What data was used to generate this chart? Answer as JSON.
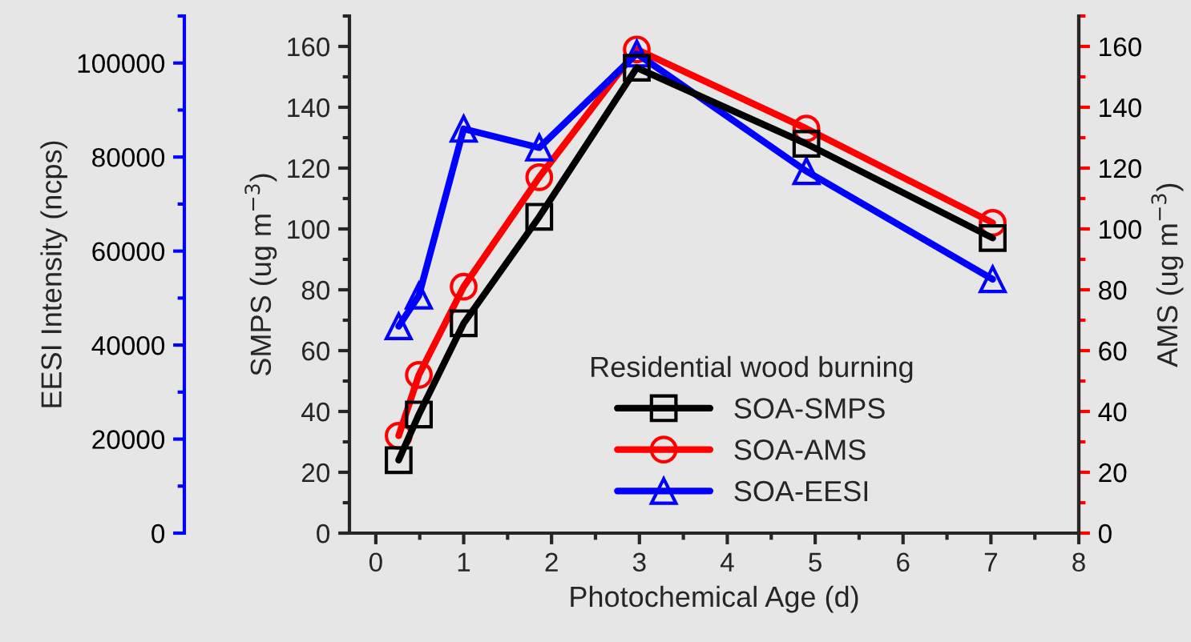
{
  "chart_data": {
    "type": "line",
    "xlabel": "Photochemical Age (d)",
    "ylabel": "SMPS (ug m$^{−3}$)",
    "y2label": "AMS (ug m$^{−3}$)",
    "y3label": "EESI Intensity (ncps)",
    "legend_title": "Residential wood burning",
    "legend": "bottom right",
    "grid": false,
    "line_style": "solid",
    "xlim": [
      -0.3,
      8
    ],
    "xticks": [
      0,
      1,
      2,
      3,
      4,
      5,
      6,
      7,
      8
    ],
    "ylim": [
      0,
      170
    ],
    "yticks": [
      0,
      20,
      40,
      60,
      80,
      100,
      120,
      140,
      160
    ],
    "y2lim": [
      0,
      170
    ],
    "y2ticks": [
      0,
      20,
      40,
      60,
      80,
      100,
      120,
      140,
      160
    ],
    "y3lim": [
      0,
      110000
    ],
    "y3ticks": [
      0,
      20000,
      40000,
      60000,
      80000,
      100000
    ],
    "series": [
      {
        "name": "SOA-SMPS",
        "color": "#000000",
        "marker": "square",
        "x": [
          0.26,
          0.49,
          1.0,
          1.86,
          2.97,
          4.9,
          7.02
        ],
        "values": [
          24,
          39,
          69,
          104,
          153,
          128,
          97
        ]
      },
      {
        "name": "SOA-AMS",
        "color": "#ff0000",
        "marker": "circle",
        "axis": "y2",
        "x": [
          0.26,
          0.49,
          1.0,
          1.86,
          2.97,
          4.9,
          7.02
        ],
        "values": [
          32,
          52,
          81,
          117,
          159,
          133,
          102
        ]
      },
      {
        "name": "SOA-EESI",
        "color": "#0000ff",
        "marker": "triangle",
        "axis": "y3",
        "x": [
          0.26,
          0.49,
          1.0,
          1.86,
          2.97,
          4.9,
          7.02
        ],
        "values": [
          44000,
          50500,
          86000,
          82000,
          102000,
          77000,
          54000
        ]
      }
    ]
  }
}
